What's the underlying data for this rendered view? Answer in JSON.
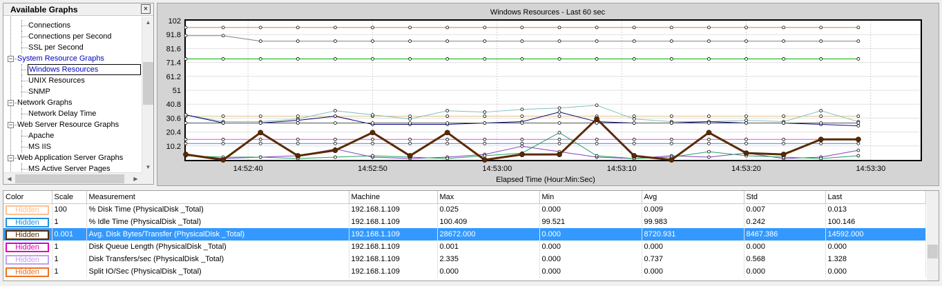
{
  "tree": {
    "title": "Available Graphs",
    "close_glyph": "×",
    "items": [
      {
        "label": "Connections",
        "level": 2
      },
      {
        "label": "Connections per Second",
        "level": 2
      },
      {
        "label": "SSL per Second",
        "level": 2
      },
      {
        "label": "System Resource Graphs",
        "level": 1,
        "expander": "−",
        "active": true
      },
      {
        "label": "Windows Resources",
        "level": 2,
        "selected": true
      },
      {
        "label": "UNIX Resources",
        "level": 2
      },
      {
        "label": "SNMP",
        "level": 2
      },
      {
        "label": "Network Graphs",
        "level": 1,
        "expander": "−"
      },
      {
        "label": "Network Delay Time",
        "level": 2
      },
      {
        "label": "Web Server Resource Graphs",
        "level": 1,
        "expander": "−"
      },
      {
        "label": "Apache",
        "level": 2
      },
      {
        "label": "MS IIS",
        "level": 2
      },
      {
        "label": "Web Application Server Graphs",
        "level": 1,
        "expander": "−"
      },
      {
        "label": "MS Active Server Pages",
        "level": 2
      }
    ]
  },
  "chart_data": {
    "type": "line",
    "title": "Windows Resources - Last 60 sec",
    "xlabel": "Elapsed Time (Hour:Min:Sec)",
    "ylabel": "",
    "ylim": [
      0,
      102
    ],
    "yticks": [
      "102",
      "91.8",
      "81.6",
      "71.4",
      "61.2",
      "51",
      "40.8",
      "30.6",
      "20.4",
      "10.2"
    ],
    "ytick_values": [
      102,
      91.8,
      81.6,
      71.4,
      61.2,
      51,
      40.8,
      30.6,
      20.4,
      10.2
    ],
    "xticks": [
      "14:52:40",
      "14:52:50",
      "14:53:00",
      "14:53:10",
      "14:53:20",
      "14:53:30"
    ],
    "xtick_values": [
      10,
      20,
      30,
      40,
      50,
      60
    ],
    "xlim": [
      5,
      64
    ],
    "grid": true,
    "x": [
      5,
      8,
      11,
      14,
      17,
      20,
      23,
      26,
      29,
      32,
      35,
      38,
      41,
      44,
      47,
      50,
      53,
      56,
      59
    ],
    "series": [
      {
        "color": "#c08040",
        "width": 1,
        "values": [
          97,
          97,
          97,
          97,
          97,
          97,
          97,
          97,
          97,
          97,
          97,
          97,
          97,
          97,
          97,
          97,
          97,
          97,
          97
        ]
      },
      {
        "color": "#808080",
        "width": 1,
        "values": [
          91,
          91,
          87,
          87,
          87,
          87,
          87,
          87,
          87,
          87,
          87,
          87,
          87,
          87,
          87,
          87,
          87,
          87,
          87
        ]
      },
      {
        "color": "#00b000",
        "width": 1,
        "values": [
          74,
          74,
          74,
          74,
          74,
          74,
          74,
          74,
          74,
          74,
          74,
          74,
          74,
          74,
          74,
          74,
          74,
          74,
          74
        ]
      },
      {
        "color": "#e0c080",
        "width": 1,
        "values": [
          32,
          32,
          32,
          32,
          32,
          32,
          32,
          32,
          32,
          32,
          32,
          32,
          32,
          32,
          32,
          32,
          32,
          32,
          32
        ]
      },
      {
        "color": "#80c0c0",
        "width": 1,
        "values": [
          33,
          28,
          28,
          30,
          36,
          33,
          30,
          36,
          35,
          37,
          38,
          40,
          30,
          28,
          28,
          29,
          28,
          36,
          28
        ]
      },
      {
        "color": "#000080",
        "width": 1,
        "values": [
          33,
          27,
          27,
          29,
          32,
          26,
          26,
          26,
          27,
          28,
          35,
          28,
          27,
          27,
          28,
          27,
          27,
          26,
          25
        ]
      },
      {
        "color": "#505050",
        "width": 1,
        "values": [
          27,
          27,
          27,
          27,
          27,
          27,
          27,
          27,
          27,
          27,
          27,
          27,
          27,
          27,
          27,
          27,
          27,
          27,
          27
        ]
      },
      {
        "color": "#ff40ff",
        "width": 1,
        "values": [
          15,
          15,
          15,
          15,
          15,
          15,
          15,
          15,
          15,
          15,
          15,
          15,
          15,
          15,
          15,
          15,
          15,
          15,
          15
        ]
      },
      {
        "color": "#4080ff",
        "width": 1,
        "values": [
          12,
          12,
          12,
          12,
          12,
          12,
          12,
          12,
          12,
          12,
          12,
          12,
          12,
          12,
          12,
          12,
          12,
          12,
          12
        ]
      },
      {
        "color": "#8040c0",
        "width": 1,
        "values": [
          4,
          1,
          2,
          3,
          8,
          2,
          1,
          2,
          4,
          10,
          6,
          2,
          1,
          3,
          2,
          5,
          1,
          2,
          7
        ]
      },
      {
        "color": "#20a060",
        "width": 1,
        "values": [
          3,
          2,
          2,
          1,
          2,
          3,
          2,
          1,
          3,
          5,
          20,
          3,
          1,
          2,
          6,
          3,
          2,
          1,
          3
        ]
      },
      {
        "color": "#5a2a00",
        "width": 3,
        "values": [
          4,
          0,
          20,
          3,
          7,
          20,
          3,
          20,
          0,
          4,
          4,
          30,
          3,
          0,
          20,
          5,
          4,
          15,
          15
        ]
      }
    ]
  },
  "table": {
    "headers": [
      "Color",
      "Scale",
      "Measurement",
      "Machine",
      "Max",
      "Min",
      "Avg",
      "Std",
      "Last"
    ],
    "rows": [
      {
        "color": "#ffc090",
        "chip": "Hidden",
        "scale": "100",
        "measurement": "% Disk Time (PhysicalDisk _Total)",
        "machine": "192.168.1.109",
        "max": "0.025",
        "min": "0.000",
        "avg": "0.009",
        "std": "0.007",
        "last": "0.013"
      },
      {
        "color": "#2090e0",
        "chip": "Hidden",
        "scale": "1",
        "measurement": "% Idle Time (PhysicalDisk _Total)",
        "machine": "192.168.1.109",
        "max": "100.409",
        "min": "99.521",
        "avg": "99.983",
        "std": "0.242",
        "last": "100.146"
      },
      {
        "color": "#5a2a00",
        "chip": "Hidden",
        "scale": "0.001",
        "measurement": "Avg. Disk Bytes/Transfer (PhysicalDisk _Total)",
        "machine": "192.168.1.109",
        "max": "28672.000",
        "min": "0.000",
        "avg": "8720.931",
        "std": "8467.386",
        "last": "14592.000",
        "selected": true
      },
      {
        "color": "#e000c0",
        "chip": "Hidden",
        "scale": "1",
        "measurement": "Disk Queue Length (PhysicalDisk _Total)",
        "machine": "192.168.1.109",
        "max": "0.001",
        "min": "0.000",
        "avg": "0.000",
        "std": "0.000",
        "last": "0.000"
      },
      {
        "color": "#c0a0f0",
        "chip": "Hidden",
        "scale": "1",
        "measurement": "Disk Transfers/sec (PhysicalDisk _Total)",
        "machine": "192.168.1.109",
        "max": "2.335",
        "min": "0.000",
        "avg": "0.737",
        "std": "0.568",
        "last": "1.328"
      },
      {
        "color": "#f07020",
        "chip": "Hidden",
        "scale": "1",
        "measurement": "Split IO/Sec (PhysicalDisk _Total)",
        "machine": "192.168.1.109",
        "max": "0.000",
        "min": "0.000",
        "avg": "0.000",
        "std": "0.000",
        "last": "0.000"
      }
    ]
  }
}
